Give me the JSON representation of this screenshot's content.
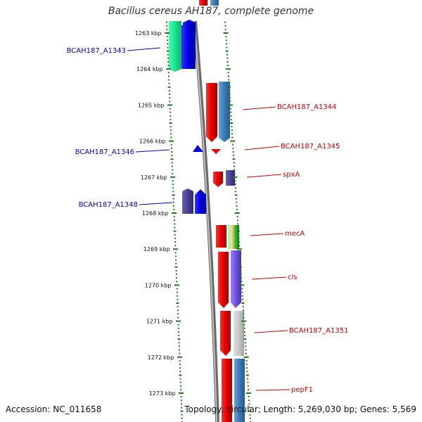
{
  "title": "Bacillus cereus AH187, complete genome",
  "footer": {
    "accession": "Accession: NC_011658",
    "summary": "Topology: circular; Length: 5,269,030 bp; Genes: 5,569"
  },
  "colors": {
    "forward_label": "#0000cc",
    "reverse_label": "#cc0000",
    "tick": "#1a7a1a",
    "backbone": "#999999"
  },
  "ticks": [
    {
      "label": "1263 kbp"
    },
    {
      "label": "1264 kbp"
    },
    {
      "label": "1265 kbp"
    },
    {
      "label": "1266 kbp"
    },
    {
      "label": "1267 kbp"
    },
    {
      "label": "1268 kbp"
    },
    {
      "label": "1269 kbp"
    },
    {
      "label": "1270 kbp"
    },
    {
      "label": "1271 kbp"
    },
    {
      "label": "1272 kbp"
    },
    {
      "label": "1273 kbp"
    }
  ],
  "genes": [
    {
      "name": "BCAH187_A1343",
      "strand": "forward"
    },
    {
      "name": "BCAH187_A1344",
      "strand": "reverse"
    },
    {
      "name": "BCAH187_A1345",
      "strand": "reverse"
    },
    {
      "name": "BCAH187_A1346",
      "strand": "forward"
    },
    {
      "name": "spxA",
      "strand": "reverse"
    },
    {
      "name": "BCAH187_A1348",
      "strand": "forward"
    },
    {
      "name": "mecA",
      "strand": "reverse"
    },
    {
      "name": "cls",
      "strand": "reverse"
    },
    {
      "name": "BCAH187_A1351",
      "strand": "reverse"
    },
    {
      "name": "pepF1",
      "strand": "reverse"
    }
  ]
}
